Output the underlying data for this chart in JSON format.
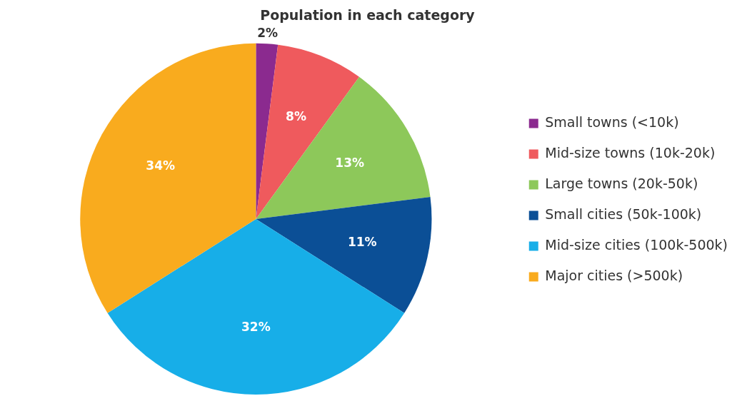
{
  "chart_data": {
    "type": "pie",
    "title": "Population in each category",
    "categories": [
      "Small towns (<10k)",
      "Mid-size towns (10k-20k)",
      "Large towns (20k-50k)",
      "Small cities (50k-100k)",
      "Mid-size cities (100k-500k)",
      "Major cities (>500k)"
    ],
    "values": [
      2,
      8,
      13,
      11,
      32,
      34
    ],
    "colors": [
      "#8b2a8f",
      "#ef5a5d",
      "#8dc85a",
      "#0b4f96",
      "#17aee8",
      "#f9ab1e"
    ],
    "value_labels": [
      "2%",
      "8%",
      "13%",
      "11%",
      "32%",
      "34%"
    ],
    "legend": "right"
  }
}
